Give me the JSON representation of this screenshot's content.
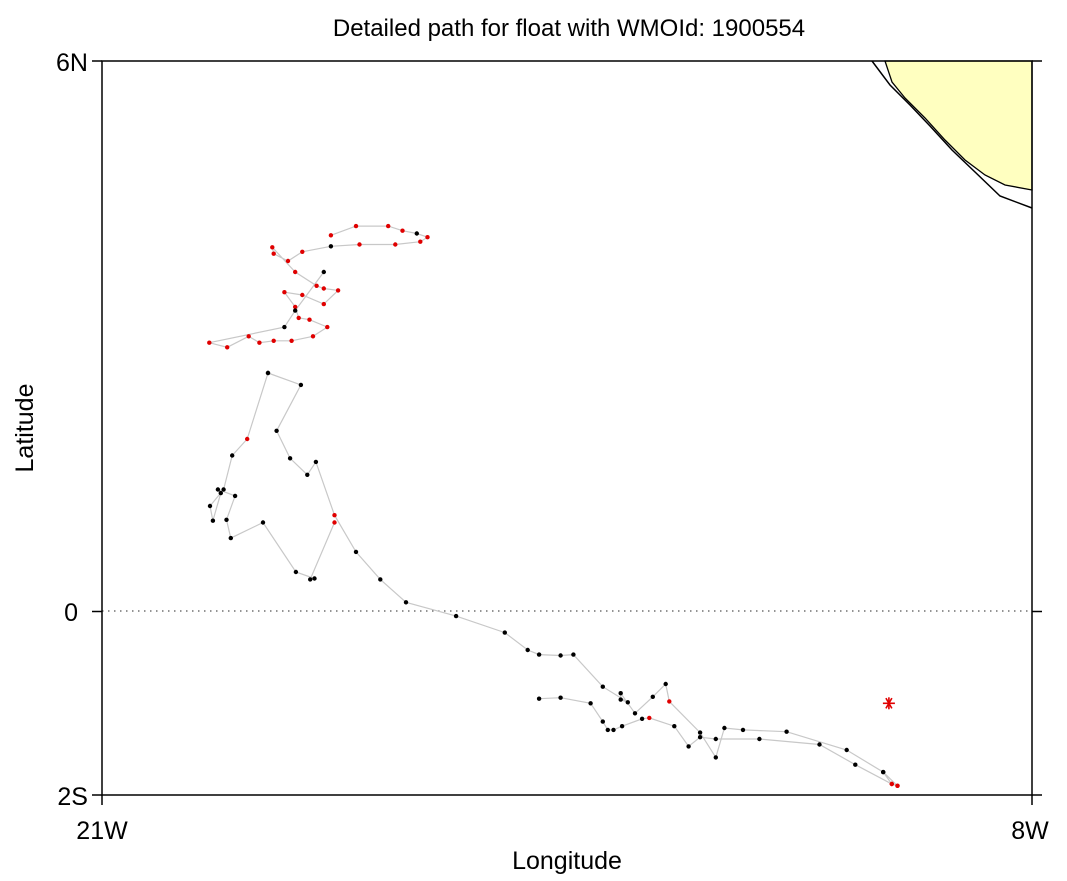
{
  "chart_data": {
    "type": "scatter",
    "title": "Detailed path for float with WMOId: 1900554",
    "xlabel": "Longitude",
    "ylabel": "Latitude",
    "xlim": [
      -21,
      -8
    ],
    "ylim": [
      -2,
      6
    ],
    "x_ticks": [
      {
        "value": -21,
        "label": "21W"
      },
      {
        "value": -8,
        "label": "8W"
      }
    ],
    "y_ticks": [
      {
        "value": 6,
        "label": "6N"
      },
      {
        "value": 0,
        "label": "0"
      },
      {
        "value": -2,
        "label": "2S"
      }
    ],
    "equator_line": true,
    "grid": false,
    "land_color": "#ffffc0",
    "path_color": "#c8c8c8",
    "colors": {
      "black_point": "#000000",
      "red_point": "#e00000"
    },
    "path": [
      [
        -18.68,
        2.6,
        "k"
      ],
      [
        -18.22,
        2.47,
        "k"
      ],
      [
        -18.56,
        1.97,
        "k"
      ],
      [
        -18.37,
        1.67,
        "k"
      ],
      [
        -18.13,
        1.49,
        "k"
      ],
      [
        -18.01,
        1.63,
        "k"
      ],
      [
        -17.75,
        1.05,
        "r"
      ],
      [
        -17.45,
        0.65,
        "k"
      ],
      [
        -17.11,
        0.35,
        "k"
      ],
      [
        -16.75,
        0.1,
        "k"
      ],
      [
        -16.05,
        -0.05,
        "k"
      ],
      [
        -15.37,
        -0.23,
        "k"
      ],
      [
        -15.05,
        -0.42,
        "k"
      ],
      [
        -14.89,
        -0.47,
        "k"
      ],
      [
        -14.59,
        -0.48,
        "k"
      ],
      [
        -14.41,
        -0.47,
        "k"
      ],
      [
        -14.0,
        -0.82,
        "k"
      ],
      [
        -13.65,
        -0.99,
        "k"
      ],
      [
        -13.75,
        -0.96,
        "k"
      ],
      [
        -13.75,
        -0.89,
        "k"
      ],
      [
        -13.55,
        -1.11,
        "k"
      ],
      [
        -13.3,
        -0.93,
        "k"
      ],
      [
        -13.12,
        -0.79,
        "k"
      ],
      [
        -13.07,
        -0.98,
        "r"
      ],
      [
        -12.64,
        -1.32,
        "k"
      ],
      [
        -12.42,
        -1.59,
        "k"
      ],
      [
        -12.3,
        -1.27,
        "k"
      ],
      [
        -12.04,
        -1.29,
        "k"
      ],
      [
        -11.43,
        -1.31,
        "k"
      ],
      [
        -10.59,
        -1.51,
        "k"
      ],
      [
        -10.08,
        -1.75,
        "k"
      ],
      [
        -9.96,
        -1.88,
        "r"
      ],
      [
        -9.88,
        -1.9,
        "r"
      ],
      [
        -10.08,
        -1.75,
        "k"
      ]
    ],
    "path2": [
      [
        -18.68,
        2.6,
        "k"
      ],
      [
        -18.97,
        1.88,
        "r"
      ],
      [
        -19.18,
        1.7,
        "k"
      ],
      [
        -19.3,
        1.33,
        "k"
      ],
      [
        -19.49,
        1.15,
        "k"
      ],
      [
        -19.45,
        0.99,
        "k"
      ],
      [
        -19.34,
        1.29,
        "k"
      ],
      [
        -19.38,
        1.33,
        "k"
      ],
      [
        -19.14,
        1.26,
        "k"
      ],
      [
        -19.26,
        1.0,
        "k"
      ],
      [
        -19.2,
        0.8,
        "k"
      ],
      [
        -18.75,
        0.97,
        "k"
      ],
      [
        -18.29,
        0.43,
        "k"
      ],
      [
        -18.03,
        0.36,
        "k"
      ],
      [
        -18.09,
        0.35,
        "k"
      ],
      [
        -17.75,
        0.97,
        "r"
      ]
    ],
    "route": [
      [
        -9.88,
        -1.9,
        "r"
      ],
      [
        -9.96,
        -1.88,
        "r"
      ],
      [
        -10.47,
        -1.67,
        "k"
      ],
      [
        -10.97,
        -1.45,
        "k"
      ],
      [
        -11.81,
        -1.39,
        "k"
      ],
      [
        -12.42,
        -1.39,
        "k"
      ],
      [
        -12.64,
        -1.37,
        "k"
      ],
      [
        -12.8,
        -1.47,
        "k"
      ],
      [
        -13.0,
        -1.25,
        "k"
      ],
      [
        -13.35,
        -1.16,
        "r"
      ],
      [
        -13.45,
        -1.17,
        "k"
      ],
      [
        -13.73,
        -1.25,
        "k"
      ],
      [
        -13.85,
        -1.29,
        "k"
      ],
      [
        -13.93,
        -1.29,
        "k"
      ],
      [
        -14.0,
        -1.2,
        "k"
      ],
      [
        -14.17,
        -1.0,
        "k"
      ],
      [
        -14.59,
        -0.94,
        "k"
      ],
      [
        -14.89,
        -0.95,
        "k"
      ]
    ],
    "end_marker": {
      "lon": -10.0,
      "lat": -1.0,
      "color": "#e00000"
    }
  }
}
